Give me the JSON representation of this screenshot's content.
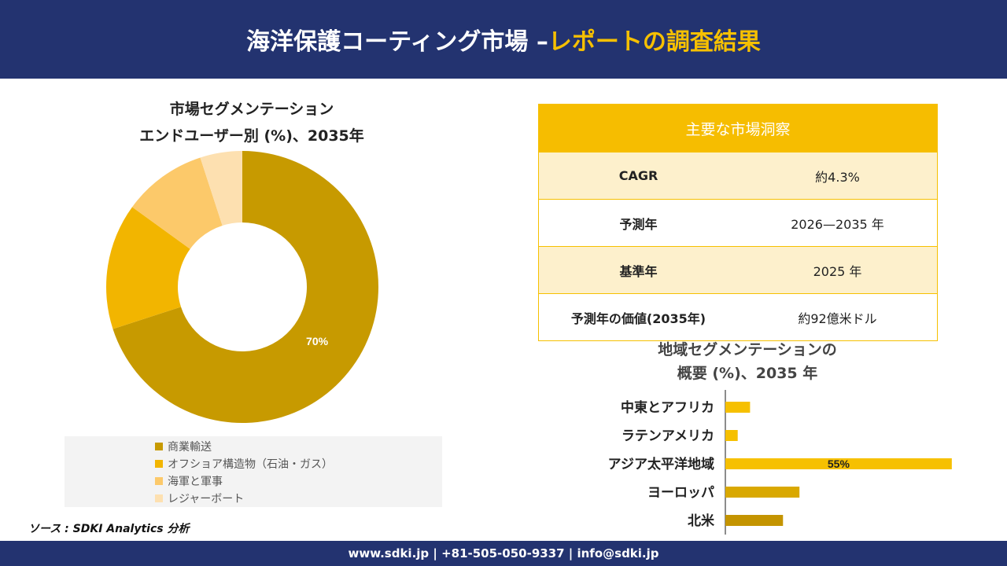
{
  "header": {
    "title_main": "海洋保護コーティング市場 –",
    "title_accent": "レポートの調査結果"
  },
  "donut": {
    "title_line1": "市場セグメンテーション",
    "title_line2": "エンドユーザー別 (%)、2035年"
  },
  "insights": {
    "heading": "主要な市場洞察",
    "rows": [
      {
        "key": "CAGR",
        "value": "約4.3%"
      },
      {
        "key": "予測年",
        "value": "2026—2035 年"
      },
      {
        "key": "基準年",
        "value": "2025 年"
      },
      {
        "key": "予測年の価値(2035年)",
        "value": "約92億米ドル"
      }
    ]
  },
  "bar": {
    "title_line1": "地域セグメンテーションの",
    "title_line2": "概要 (%)、2035 年"
  },
  "source": "ソース : SDKI Analytics 分析",
  "footer": "www.sdki.jp | +81-505-050-9337 | info@sdki.jp",
  "chart_data": [
    {
      "type": "pie",
      "subtype": "donut",
      "title": "市場セグメンテーション エンドユーザー別 (%)、2035年",
      "categories": [
        "商業輸送",
        "オフショア構造物（石油・ガス）",
        "海軍と軍事",
        "レジャーボート"
      ],
      "values": [
        70,
        15,
        10,
        5
      ],
      "data_labels": [
        "70%",
        "",
        "",
        ""
      ],
      "colors": [
        "#c79a00",
        "#f2b500",
        "#fcc96a",
        "#fde0b0"
      ],
      "legend_position": "bottom"
    },
    {
      "type": "bar",
      "orientation": "horizontal",
      "title": "地域セグメンテーションの 概要 (%)、2035 年",
      "categories": [
        "中東とアフリカ",
        "ラテンアメリカ",
        "アジア太平洋地域",
        "ヨーロッパ",
        "北米"
      ],
      "values": [
        6,
        3,
        55,
        18,
        14
      ],
      "data_labels": [
        "",
        "",
        "55%",
        "",
        ""
      ],
      "colors": [
        "#f6c000",
        "#f6c000",
        "#f6c000",
        "#d9a800",
        "#c49400"
      ],
      "xlim": [
        0,
        60
      ],
      "grid": false
    }
  ]
}
